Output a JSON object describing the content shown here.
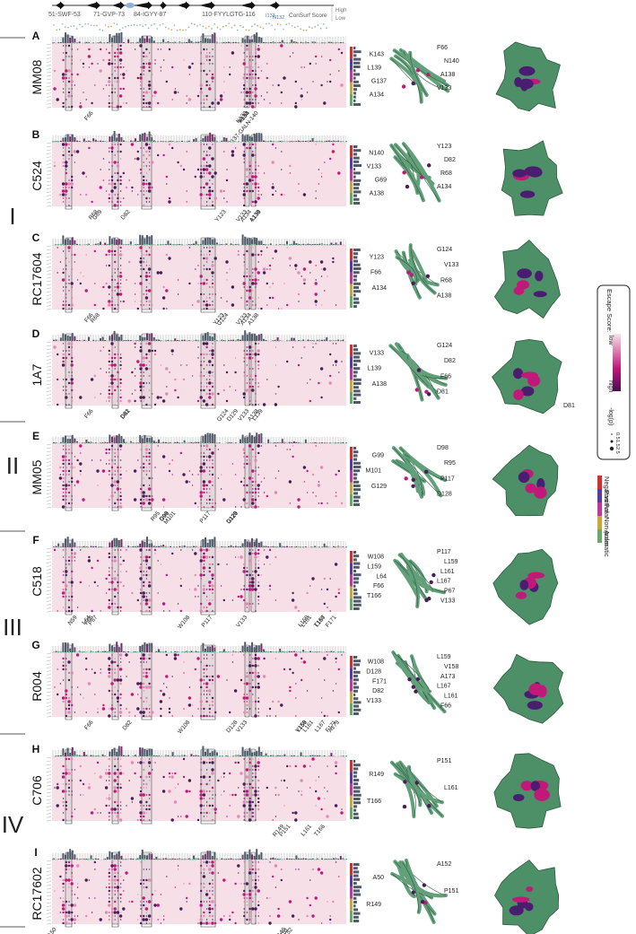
{
  "header": {
    "regions": [
      "51-SWF-53",
      "71-GVP-73",
      "84-IGYY-87",
      "110-FYYLGTG-116"
    ],
    "sites": [
      "I133",
      "N132"
    ],
    "conservation_label": "ConSurf Score",
    "high_label": "High",
    "low_label": "Low"
  },
  "groups": [
    "I",
    "II",
    "III",
    "IV"
  ],
  "panels": [
    {
      "letter": "A",
      "name": "MM08",
      "group": "I",
      "axis_labels": [
        "F66",
        "V133",
        "A134",
        "137-GALN-140",
        "K133"
      ],
      "structure_labels": [
        "F66",
        "K143",
        "N140",
        "L139",
        "A138",
        "G137",
        "V133",
        "A134"
      ]
    },
    {
      "letter": "B",
      "name": "C524",
      "group": "I",
      "axis_labels": [
        "R68",
        "G69",
        "D82",
        "Y123",
        "V133",
        "A134",
        "L139",
        "A138"
      ],
      "structure_labels": [
        "Y123",
        "N140",
        "D82",
        "V133",
        "R68",
        "G69",
        "A134",
        "A138"
      ]
    },
    {
      "letter": "C",
      "name": "RC17604",
      "group": "I",
      "axis_labels": [
        "F66",
        "R68",
        "Y123",
        "G124",
        "V133",
        "A134",
        "A138"
      ],
      "structure_labels": [
        "G124",
        "Y123",
        "V133",
        "F66",
        "R68",
        "A134",
        "A138"
      ]
    },
    {
      "letter": "D",
      "name": "1A7",
      "group": "I",
      "axis_labels": [
        "F66",
        "D81",
        "D82",
        "G124",
        "D129",
        "V133",
        "A138",
        "L139"
      ],
      "structure_labels": [
        "G124",
        "V133",
        "D82",
        "L139",
        "F66",
        "A138",
        "D81"
      ],
      "surface_label": "D81"
    },
    {
      "letter": "E",
      "name": "MM05",
      "group": "II",
      "axis_labels": [
        "R95",
        "D98",
        "G99",
        "M101",
        "P117",
        "D128",
        "G129"
      ],
      "structure_labels": [
        "D98",
        "G99",
        "R95",
        "M101",
        "P117",
        "G129",
        "D128"
      ]
    },
    {
      "letter": "F",
      "name": "C518",
      "group": "III",
      "axis_labels": [
        "N59",
        "L64",
        "F66",
        "P67",
        "W108",
        "P117",
        "V133",
        "L159",
        "L161",
        "T166",
        "L167",
        "F171"
      ],
      "structure_labels": [
        "P117",
        "W108",
        "L159",
        "L159",
        "L161",
        "L64",
        "L167",
        "F66",
        "P67",
        "T166",
        "V133"
      ]
    },
    {
      "letter": "G",
      "name": "R004",
      "group": "III",
      "axis_labels": [
        "F66",
        "D82",
        "W108",
        "D128",
        "V133",
        "V158",
        "L159",
        "L161",
        "L167",
        "F171",
        "A173"
      ],
      "structure_labels": [
        "L159",
        "W108",
        "V158",
        "D128",
        "A173",
        "F171",
        "L167",
        "D82",
        "L161",
        "V133",
        "F66"
      ]
    },
    {
      "letter": "H",
      "name": "C706",
      "group": "IV",
      "axis_labels": [
        "R149",
        "P151",
        "L161",
        "T166"
      ],
      "structure_labels": [
        "P151",
        "R149",
        "L161",
        "T166"
      ]
    },
    {
      "letter": "I",
      "name": "RC17602",
      "group": "IV",
      "axis_labels": [
        "A50",
        "R149",
        "P151",
        "A152"
      ],
      "structure_labels": [
        "A152",
        "A50",
        "P151",
        "R149"
      ]
    }
  ],
  "legend": {
    "title": "Escape Score:",
    "low": "low",
    "high": "high",
    "size_title": "-log(p)",
    "size_values": [
      "0.5",
      "1.5",
      "2.5"
    ],
    "colors": {
      "low": "#f7e3ea",
      "high": "#4a0a55"
    }
  },
  "residue_classes": [
    {
      "name": "Negative",
      "color": "#d03030"
    },
    {
      "name": "Positive",
      "color": "#5a3aa0"
    },
    {
      "name": "Polar",
      "color": "#c0399a"
    },
    {
      "name": "Non-polar",
      "color": "#c7a63a"
    },
    {
      "name": "Aromatic",
      "color": "#6aa86a"
    }
  ],
  "colors": {
    "heatmap_bg": "#f6dfe6",
    "dot_dark": "#4a1d56",
    "dot_mag": "#c2187a",
    "bar": "#4f5a6a",
    "protein": "#62a07a",
    "surface": "#4d9068",
    "accent_green": "#6cbf8d"
  }
}
